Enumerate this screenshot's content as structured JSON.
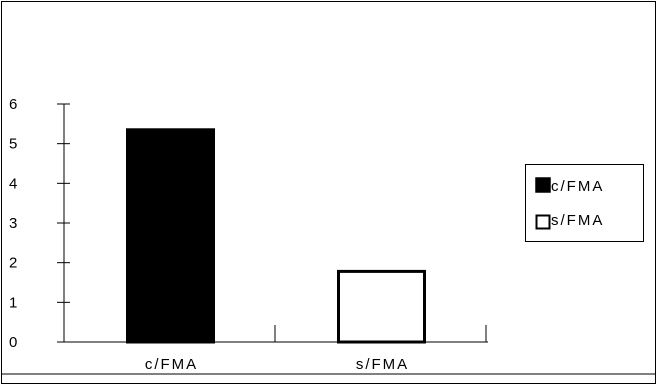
{
  "chart_data": {
    "type": "bar",
    "categories": [
      "c/FMA",
      "s/FMA"
    ],
    "values": [
      5.35,
      1.78
    ],
    "colors": [
      "#000000",
      "#ffffff"
    ],
    "ylim": [
      0,
      6
    ],
    "yticks": [
      "0",
      "1",
      "2",
      "3",
      "4",
      "5",
      "6"
    ],
    "legend": {
      "position": "right",
      "entries": [
        "c/FMA",
        "s/FMA"
      ]
    },
    "grid": false
  }
}
